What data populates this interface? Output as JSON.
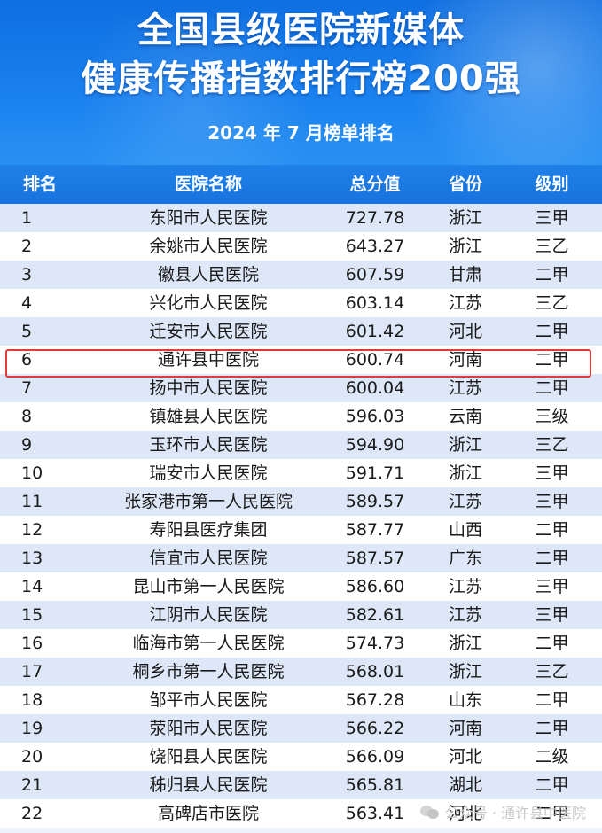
{
  "header": {
    "title_line1": "全国县级医院新媒体",
    "title_line2": "健康传播指数排行榜200强",
    "subtitle": "2024 年 7 月榜单排名"
  },
  "table": {
    "columns": [
      "排名",
      "医院名称",
      "总分值",
      "省份",
      "级别"
    ],
    "rows": [
      {
        "rank": "1",
        "name": "东阳市人民医院",
        "score": "727.78",
        "province": "浙江",
        "level": "三甲"
      },
      {
        "rank": "2",
        "name": "余姚市人民医院",
        "score": "643.27",
        "province": "浙江",
        "level": "三乙"
      },
      {
        "rank": "3",
        "name": "徽县人民医院",
        "score": "607.59",
        "province": "甘肃",
        "level": "二甲"
      },
      {
        "rank": "4",
        "name": "兴化市人民医院",
        "score": "603.14",
        "province": "江苏",
        "level": "三乙"
      },
      {
        "rank": "5",
        "name": "迁安市人民医院",
        "score": "601.42",
        "province": "河北",
        "level": "二甲"
      },
      {
        "rank": "6",
        "name": "通许县中医院",
        "score": "600.74",
        "province": "河南",
        "level": "二甲"
      },
      {
        "rank": "7",
        "name": "扬中市人民医院",
        "score": "600.04",
        "province": "江苏",
        "level": "二甲"
      },
      {
        "rank": "8",
        "name": "镇雄县人民医院",
        "score": "596.03",
        "province": "云南",
        "level": "三级"
      },
      {
        "rank": "9",
        "name": "玉环市人民医院",
        "score": "594.90",
        "province": "浙江",
        "level": "三乙"
      },
      {
        "rank": "10",
        "name": "瑞安市人民医院",
        "score": "591.71",
        "province": "浙江",
        "level": "三甲"
      },
      {
        "rank": "11",
        "name": "张家港市第一人民医院",
        "score": "589.57",
        "province": "江苏",
        "level": "三甲"
      },
      {
        "rank": "12",
        "name": "寿阳县医疗集团",
        "score": "587.77",
        "province": "山西",
        "level": "二甲"
      },
      {
        "rank": "13",
        "name": "信宜市人民医院",
        "score": "587.57",
        "province": "广东",
        "level": "二甲"
      },
      {
        "rank": "14",
        "name": "昆山市第一人民医院",
        "score": "586.60",
        "province": "江苏",
        "level": "三甲"
      },
      {
        "rank": "15",
        "name": "江阴市人民医院",
        "score": "582.61",
        "province": "江苏",
        "level": "三甲"
      },
      {
        "rank": "16",
        "name": "临海市第一人民医院",
        "score": "574.73",
        "province": "浙江",
        "level": "二甲"
      },
      {
        "rank": "17",
        "name": "桐乡市第一人民医院",
        "score": "568.01",
        "province": "浙江",
        "level": "三乙"
      },
      {
        "rank": "18",
        "name": "邹平市人民医院",
        "score": "567.28",
        "province": "山东",
        "level": "二甲"
      },
      {
        "rank": "19",
        "name": "荥阳市人民医院",
        "score": "566.22",
        "province": "河南",
        "level": "二甲"
      },
      {
        "rank": "20",
        "name": "饶阳县人民医院",
        "score": "566.09",
        "province": "河北",
        "level": "二级"
      },
      {
        "rank": "21",
        "name": "秭归县人民医院",
        "score": "565.81",
        "province": "湖北",
        "level": "二甲"
      },
      {
        "rank": "22",
        "name": "高碑店市医院",
        "score": "563.41",
        "province": "河北",
        "level": "二甲"
      }
    ],
    "highlighted_rank": "6"
  },
  "watermark": {
    "text": "公众号 · 通许县中医院",
    "icon": "wechat-icon"
  },
  "colors": {
    "banner": "#1a82ef",
    "header_row": "#1f80e8",
    "row_stripe": "#dde7f7",
    "highlight_border": "#e03b3b"
  }
}
